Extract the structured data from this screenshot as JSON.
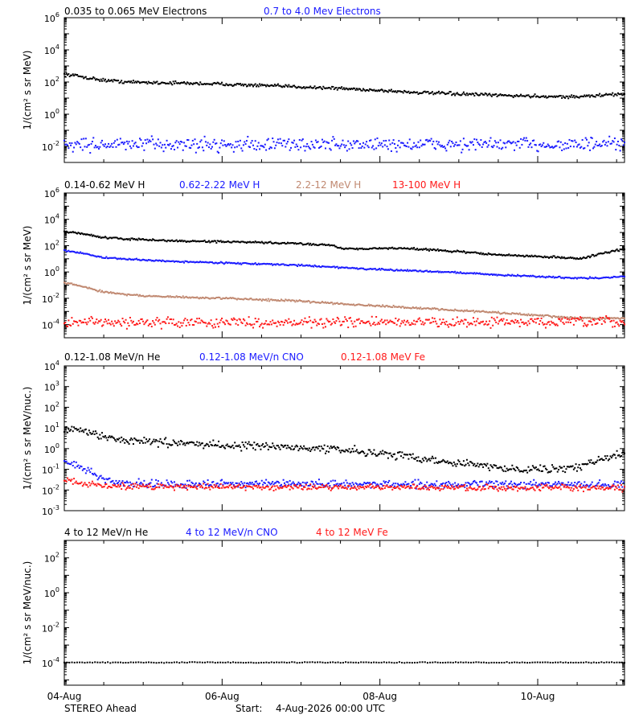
{
  "colors": {
    "black": "#000000",
    "blue": "#1a1aff",
    "tan": "#c08870",
    "red": "#ff1a1a",
    "axis": "#000000"
  },
  "x_tick_labels": [
    "04-Aug",
    "06-Aug",
    "08-Aug",
    "10-Aug"
  ],
  "footer": {
    "spacecraft": "STEREO Ahead",
    "start_label": "Start:",
    "start_value": "4-Aug-2026 00:00 UTC"
  },
  "chart_data": [
    {
      "type": "scatter",
      "scale": "log",
      "ylabel": "1/(cm² s sr MeV)",
      "ylim": [
        0.001,
        1000000
      ],
      "yticks": [
        {
          "v": 0.01,
          "t": "10",
          "e": "-2"
        },
        {
          "v": 1,
          "t": "10",
          "e": "0"
        },
        {
          "v": 100,
          "t": "10",
          "e": "2"
        },
        {
          "v": 10000,
          "t": "10",
          "e": "4"
        },
        {
          "v": 1000000,
          "t": "10",
          "e": "6"
        }
      ],
      "xlim": [
        0,
        7.1
      ],
      "series": [
        {
          "name": "0.035 to 0.065 MeV Electrons",
          "color": "black",
          "x": [
            0,
            0.15,
            0.3,
            0.5,
            0.8,
            1,
            1.5,
            2,
            2.5,
            3,
            3.5,
            4,
            4.5,
            5,
            5.5,
            6,
            6.5,
            6.9,
            7.1
          ],
          "y": [
            300,
            250,
            180,
            130,
            100,
            95,
            85,
            75,
            60,
            50,
            40,
            30,
            22,
            18,
            15,
            13,
            12,
            16,
            18
          ],
          "jitter": 0.08
        },
        {
          "name": "0.7 to 4.0 Mev Electrons",
          "color": "blue",
          "x": [
            0,
            7.1
          ],
          "y": [
            0.013,
            0.013
          ],
          "jitter": 0.35
        }
      ]
    },
    {
      "type": "scatter",
      "scale": "log",
      "ylabel": "1/(cm² s sr MeV)",
      "ylim": [
        1e-05,
        1000000
      ],
      "yticks": [
        {
          "v": 0.0001,
          "t": "10",
          "e": "-4"
        },
        {
          "v": 0.01,
          "t": "10",
          "e": "-2"
        },
        {
          "v": 1,
          "t": "10",
          "e": "0"
        },
        {
          "v": 100,
          "t": "10",
          "e": "2"
        },
        {
          "v": 10000,
          "t": "10",
          "e": "4"
        },
        {
          "v": 1000000,
          "t": "10",
          "e": "6"
        }
      ],
      "xlim": [
        0,
        7.1
      ],
      "series": [
        {
          "name": "0.14-0.62 MeV H",
          "color": "black",
          "x": [
            0,
            0.2,
            0.5,
            1,
            1.5,
            2,
            2.5,
            3,
            3.4,
            3.5,
            4,
            4.3,
            4.5,
            5,
            5.5,
            6,
            6.4,
            6.5,
            6.6,
            6.8,
            7.1
          ],
          "y": [
            1100,
            900,
            400,
            280,
            220,
            200,
            170,
            140,
            110,
            60,
            60,
            65,
            55,
            35,
            20,
            15,
            12,
            10,
            12,
            25,
            55
          ],
          "jitter": 0.06
        },
        {
          "name": "0.62-2.22 MeV H",
          "color": "blue",
          "x": [
            0,
            0.2,
            0.5,
            1,
            1.5,
            2,
            2.5,
            3,
            3.5,
            4,
            4.5,
            5,
            5.5,
            6,
            6.5,
            6.8,
            7.1
          ],
          "y": [
            40,
            30,
            12,
            8,
            6,
            5,
            4,
            3.2,
            2.2,
            1.5,
            1.2,
            0.9,
            0.6,
            0.45,
            0.35,
            0.35,
            0.45
          ],
          "jitter": 0.05
        },
        {
          "name": "2.2-12 MeV H",
          "color": "tan",
          "x": [
            0,
            0.2,
            0.5,
            1,
            1.5,
            2,
            2.5,
            3,
            3.5,
            4,
            4.5,
            5,
            5.5,
            6,
            6.5,
            7.1
          ],
          "y": [
            0.15,
            0.09,
            0.03,
            0.015,
            0.012,
            0.01,
            0.008,
            0.006,
            0.004,
            0.0025,
            0.0018,
            0.0012,
            0.0008,
            0.0005,
            0.0003,
            0.0003
          ],
          "jitter": 0.06
        },
        {
          "name": "13-100 MeV H",
          "color": "red",
          "x": [
            0,
            7.1
          ],
          "y": [
            0.00015,
            0.00015
          ],
          "jitter": 0.3
        }
      ]
    },
    {
      "type": "scatter",
      "scale": "log",
      "ylabel": "1/(cm² s sr MeV/nuc.)",
      "ylim": [
        0.001,
        10000
      ],
      "yticks": [
        {
          "v": 0.001,
          "t": "10",
          "e": "-3"
        },
        {
          "v": 0.01,
          "t": "10",
          "e": "-2"
        },
        {
          "v": 0.1,
          "t": "10",
          "e": "-1"
        },
        {
          "v": 1,
          "t": "10",
          "e": "0"
        },
        {
          "v": 10,
          "t": "10",
          "e": "1"
        },
        {
          "v": 100,
          "t": "10",
          "e": "2"
        },
        {
          "v": 1000,
          "t": "10",
          "e": "3"
        },
        {
          "v": 10000,
          "t": "10",
          "e": "4"
        }
      ],
      "xlim": [
        0,
        7.1
      ],
      "series": [
        {
          "name": "0.12-1.08 MeV/n He",
          "color": "black",
          "x": [
            0,
            0.2,
            0.4,
            0.6,
            1,
            1.5,
            2,
            2.5,
            3,
            3.5,
            4,
            4.5,
            5,
            5.5,
            6,
            6.5,
            6.8,
            7.1
          ],
          "y": [
            9,
            8,
            5,
            3,
            2.2,
            1.8,
            1.5,
            1.3,
            1.1,
            0.9,
            0.6,
            0.35,
            0.2,
            0.12,
            0.1,
            0.12,
            0.3,
            0.6
          ],
          "jitter": 0.15
        },
        {
          "name": "0.12-1.08 MeV/n CNO",
          "color": "blue",
          "x": [
            0,
            0.2,
            0.4,
            0.6,
            1,
            7.1
          ],
          "y": [
            0.2,
            0.15,
            0.05,
            0.025,
            0.02,
            0.018
          ],
          "jitter": 0.15
        },
        {
          "name": "0.12-1.08 MeV Fe",
          "color": "red",
          "x": [
            0,
            0.3,
            0.6,
            7.1
          ],
          "y": [
            0.03,
            0.02,
            0.015,
            0.012
          ],
          "jitter": 0.12
        }
      ]
    },
    {
      "type": "scatter",
      "scale": "log",
      "ylabel": "1/(cm² s sr MeV/nuc.)",
      "ylim": [
        5e-06,
        1000
      ],
      "yticks": [
        {
          "v": 0.0001,
          "t": "10",
          "e": "-4"
        },
        {
          "v": 0.01,
          "t": "10",
          "e": "-2"
        },
        {
          "v": 1,
          "t": "10",
          "e": "0"
        },
        {
          "v": 100,
          "t": "10",
          "e": "2"
        }
      ],
      "xlim": [
        0,
        7.1
      ],
      "series": [
        {
          "name": "4 to 12 MeV/n He",
          "color": "black",
          "x": [
            0,
            7.1
          ],
          "y": [
            0.0001,
            0.0001
          ],
          "jitter": 0.02
        },
        {
          "name": "4 to 12 MeV/n CNO",
          "color": "blue",
          "x": [
            0,
            7.1
          ],
          "y": [
            0.0001,
            0.0001
          ],
          "jitter": 0
        },
        {
          "name": "4 to 12 MeV Fe",
          "color": "red",
          "x": [
            0,
            7.1
          ],
          "y": [
            0.0001,
            0.0001
          ],
          "jitter": 0
        }
      ]
    }
  ]
}
